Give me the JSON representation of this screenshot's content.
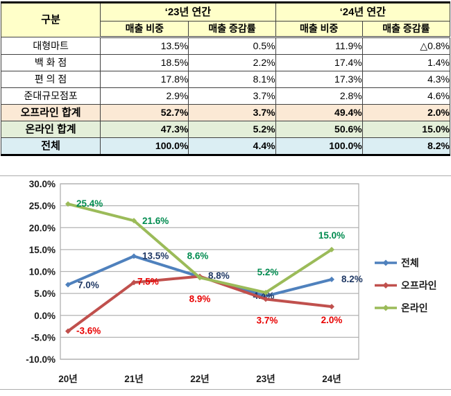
{
  "page": {
    "background": "#FFFFFF"
  },
  "chart_data": [
    {
      "type": "table",
      "header": {
        "category": "구분",
        "groups": [
          {
            "label": "‘23년 연간",
            "subcols": [
              "매출 비중",
              "매출 증감률"
            ]
          },
          {
            "label": "‘24년 연간",
            "subcols": [
              "매출 비중",
              "매출 증감률"
            ]
          }
        ]
      },
      "rows": [
        {
          "label": "대형마트",
          "values": [
            "13.5%",
            "0.5%",
            "11.9%",
            "△0.8%"
          ],
          "style": "normal"
        },
        {
          "label": "백 화 점",
          "values": [
            "18.5%",
            "2.2%",
            "17.4%",
            "1.4%"
          ],
          "style": "normal"
        },
        {
          "label": "편 의 점",
          "values": [
            "17.8%",
            "8.1%",
            "17.3%",
            "4.3%"
          ],
          "style": "normal"
        },
        {
          "label": "준대규모점포",
          "values": [
            "2.9%",
            "3.7%",
            "2.8%",
            "4.6%"
          ],
          "style": "normal"
        },
        {
          "label": "오프라인 합계",
          "values": [
            "52.7%",
            "3.7%",
            "49.4%",
            "2.0%"
          ],
          "style": "offline-total"
        },
        {
          "label": "온라인 합계",
          "values": [
            "47.3%",
            "5.2%",
            "50.6%",
            "15.0%"
          ],
          "style": "online-total"
        },
        {
          "label": "전체",
          "values": [
            "100.0%",
            "4.4%",
            "100.0%",
            "8.2%"
          ],
          "style": "grand-total"
        }
      ],
      "row_colors": {
        "header_bg": "#FFFFC9",
        "offline_total_bg": "#FBE9D5",
        "online_total_bg": "#E4EFD9",
        "grand_total_bg": "#DBEEF3"
      }
    },
    {
      "type": "line",
      "x": [
        "20년",
        "21년",
        "22년",
        "23년",
        "24년"
      ],
      "series": [
        {
          "name": "전체",
          "color": "#4F81BD",
          "label_color": "#1F3864",
          "values": [
            7.0,
            13.5,
            8.8,
            4.4,
            8.2
          ],
          "labels": [
            "7.0%",
            "13.5%",
            "8.8%",
            "4.4%",
            "8.2%"
          ]
        },
        {
          "name": "오프라인",
          "color": "#C0504D",
          "label_color": "#E80000",
          "values": [
            -3.6,
            7.5,
            8.9,
            3.7,
            2.0
          ],
          "labels": [
            "-3.6%",
            "7.5%",
            "8.9%",
            "3.7%",
            "2.0%"
          ]
        },
        {
          "name": "온라인",
          "color": "#9BBB59",
          "label_color": "#008B4F",
          "values": [
            25.4,
            21.6,
            8.6,
            5.2,
            15.0
          ],
          "labels": [
            "25.4%",
            "21.6%",
            "8.6%",
            "5.2%",
            "15.0%"
          ]
        }
      ],
      "ylim": [
        -10,
        30
      ],
      "ytick_step": 5,
      "ytick_labels": [
        "30.0%",
        "25.0%",
        "20.0%",
        "15.0%",
        "10.0%",
        "5.0%",
        "0.0%",
        "-5.0%",
        "-10.0%"
      ],
      "grid": true,
      "legend_position": "right",
      "axis_colors": {
        "grid": "#B3B3B3",
        "plot_border": "#ABABAB",
        "tick_label": "#1A1A1A",
        "legend_label": "#1A1A1A"
      }
    }
  ]
}
